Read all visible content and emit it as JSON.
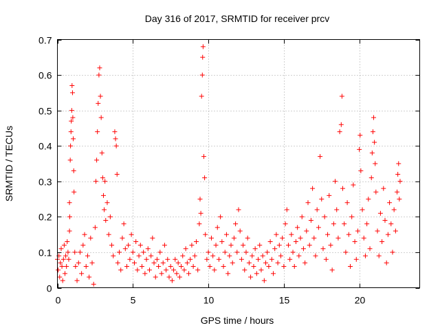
{
  "chart_data": {
    "type": "scatter",
    "title": "Day 316 of 2017, SRMTID for receiver prcv",
    "xlabel": "GPS time / hours",
    "ylabel": "SRMTID / TECUs",
    "xlim": [
      0,
      24
    ],
    "ylim": [
      0,
      0.7
    ],
    "xticks": [
      0,
      5,
      10,
      15,
      20
    ],
    "xtick_labels": [
      "0",
      "5",
      "10",
      "15",
      "20"
    ],
    "yticks": [
      0,
      0.1,
      0.2,
      0.3,
      0.4,
      0.5,
      0.6,
      0.7
    ],
    "ytick_labels": [
      "0",
      "0.1",
      "0.2",
      "0.3",
      "0.4",
      "0.5",
      "0.6",
      "0.7"
    ],
    "grid": true,
    "marker": "plus",
    "series": [
      {
        "name": "SRMTID",
        "color": "#ff0000",
        "points": [
          [
            0.0,
            0.08
          ],
          [
            0.05,
            0.05
          ],
          [
            0.1,
            0.09
          ],
          [
            0.15,
            0.03
          ],
          [
            0.2,
            0.07
          ],
          [
            0.25,
            0.11
          ],
          [
            0.3,
            0.06
          ],
          [
            0.35,
            0.02
          ],
          [
            0.4,
            0.08
          ],
          [
            0.45,
            0.12
          ],
          [
            0.5,
            0.04
          ],
          [
            0.55,
            0.09
          ],
          [
            0.6,
            0.06
          ],
          [
            0.65,
            0.13
          ],
          [
            0.7,
            0.1
          ],
          [
            0.75,
            0.08
          ],
          [
            0.8,
            0.16
          ],
          [
            0.8,
            0.24
          ],
          [
            0.82,
            0.2
          ],
          [
            0.85,
            0.36
          ],
          [
            0.87,
            0.4
          ],
          [
            0.9,
            0.44
          ],
          [
            0.92,
            0.47
          ],
          [
            0.95,
            0.5
          ],
          [
            0.97,
            0.57
          ],
          [
            1.0,
            0.55
          ],
          [
            1.02,
            0.48
          ],
          [
            1.05,
            0.42
          ],
          [
            1.08,
            0.33
          ],
          [
            1.1,
            0.27
          ],
          [
            1.15,
            0.1
          ],
          [
            1.2,
            0.06
          ],
          [
            1.3,
            0.02
          ],
          [
            1.4,
            0.07
          ],
          [
            1.5,
            0.1
          ],
          [
            1.6,
            0.04
          ],
          [
            1.7,
            0.12
          ],
          [
            1.8,
            0.15
          ],
          [
            1.9,
            0.06
          ],
          [
            2.0,
            0.09
          ],
          [
            2.1,
            0.03
          ],
          [
            2.2,
            0.14
          ],
          [
            2.3,
            0.07
          ],
          [
            2.4,
            0.01
          ],
          [
            2.5,
            0.17
          ],
          [
            2.55,
            0.3
          ],
          [
            2.6,
            0.36
          ],
          [
            2.65,
            0.44
          ],
          [
            2.7,
            0.52
          ],
          [
            2.75,
            0.6
          ],
          [
            2.8,
            0.62
          ],
          [
            2.85,
            0.54
          ],
          [
            2.9,
            0.48
          ],
          [
            2.95,
            0.38
          ],
          [
            3.0,
            0.31
          ],
          [
            3.05,
            0.26
          ],
          [
            3.1,
            0.22
          ],
          [
            3.15,
            0.3
          ],
          [
            3.2,
            0.19
          ],
          [
            3.3,
            0.24
          ],
          [
            3.4,
            0.15
          ],
          [
            3.5,
            0.2
          ],
          [
            3.6,
            0.12
          ],
          [
            3.7,
            0.09
          ],
          [
            3.8,
            0.44
          ],
          [
            3.85,
            0.42
          ],
          [
            3.9,
            0.4
          ],
          [
            3.95,
            0.32
          ],
          [
            4.0,
            0.07
          ],
          [
            4.1,
            0.1
          ],
          [
            4.2,
            0.05
          ],
          [
            4.3,
            0.14
          ],
          [
            4.4,
            0.18
          ],
          [
            4.5,
            0.11
          ],
          [
            4.6,
            0.06
          ],
          [
            4.7,
            0.12
          ],
          [
            4.8,
            0.08
          ],
          [
            4.9,
            0.15
          ],
          [
            5.0,
            0.1
          ],
          [
            5.1,
            0.07
          ],
          [
            5.2,
            0.13
          ],
          [
            5.3,
            0.05
          ],
          [
            5.4,
            0.09
          ],
          [
            5.5,
            0.12
          ],
          [
            5.6,
            0.06
          ],
          [
            5.7,
            0.1
          ],
          [
            5.8,
            0.04
          ],
          [
            5.9,
            0.08
          ],
          [
            6.0,
            0.11
          ],
          [
            6.1,
            0.05
          ],
          [
            6.2,
            0.09
          ],
          [
            6.3,
            0.14
          ],
          [
            6.4,
            0.07
          ],
          [
            6.5,
            0.03
          ],
          [
            6.6,
            0.08
          ],
          [
            6.7,
            0.06
          ],
          [
            6.8,
            0.1
          ],
          [
            6.9,
            0.04
          ],
          [
            7.0,
            0.07
          ],
          [
            7.1,
            0.12
          ],
          [
            7.2,
            0.05
          ],
          [
            7.3,
            0.08
          ],
          [
            7.4,
            0.03
          ],
          [
            7.5,
            0.06
          ],
          [
            7.6,
            0.02
          ],
          [
            7.7,
            0.05
          ],
          [
            7.8,
            0.08
          ],
          [
            7.9,
            0.04
          ],
          [
            8.0,
            0.07
          ],
          [
            8.1,
            0.03
          ],
          [
            8.2,
            0.06
          ],
          [
            8.3,
            0.09
          ],
          [
            8.4,
            0.05
          ],
          [
            8.5,
            0.11
          ],
          [
            8.6,
            0.07
          ],
          [
            8.7,
            0.04
          ],
          [
            8.8,
            0.08
          ],
          [
            8.9,
            0.12
          ],
          [
            9.0,
            0.06
          ],
          [
            9.1,
            0.09
          ],
          [
            9.2,
            0.13
          ],
          [
            9.3,
            0.05
          ],
          [
            9.4,
            0.18
          ],
          [
            9.45,
            0.25
          ],
          [
            9.5,
            0.21
          ],
          [
            9.55,
            0.54
          ],
          [
            9.6,
            0.6
          ],
          [
            9.62,
            0.65
          ],
          [
            9.65,
            0.68
          ],
          [
            9.7,
            0.37
          ],
          [
            9.75,
            0.31
          ],
          [
            9.8,
            0.15
          ],
          [
            9.9,
            0.08
          ],
          [
            10.0,
            0.1
          ],
          [
            10.1,
            0.06
          ],
          [
            10.2,
            0.14
          ],
          [
            10.3,
            0.09
          ],
          [
            10.4,
            0.05
          ],
          [
            10.5,
            0.12
          ],
          [
            10.6,
            0.17
          ],
          [
            10.7,
            0.08
          ],
          [
            10.8,
            0.2
          ],
          [
            10.9,
            0.13
          ],
          [
            11.0,
            0.06
          ],
          [
            11.1,
            0.1
          ],
          [
            11.2,
            0.15
          ],
          [
            11.3,
            0.04
          ],
          [
            11.4,
            0.09
          ],
          [
            11.5,
            0.12
          ],
          [
            11.6,
            0.07
          ],
          [
            11.7,
            0.14
          ],
          [
            11.8,
            0.18
          ],
          [
            11.9,
            0.1
          ],
          [
            12.0,
            0.22
          ],
          [
            12.1,
            0.16
          ],
          [
            12.2,
            0.08
          ],
          [
            12.3,
            0.12
          ],
          [
            12.4,
            0.05
          ],
          [
            12.5,
            0.1
          ],
          [
            12.6,
            0.14
          ],
          [
            12.7,
            0.07
          ],
          [
            12.8,
            0.03
          ],
          [
            12.9,
            0.09
          ],
          [
            13.0,
            0.06
          ],
          [
            13.1,
            0.11
          ],
          [
            13.2,
            0.04
          ],
          [
            13.3,
            0.08
          ],
          [
            13.4,
            0.12
          ],
          [
            13.5,
            0.05
          ],
          [
            13.6,
            0.09
          ],
          [
            13.7,
            0.02
          ],
          [
            13.8,
            0.07
          ],
          [
            13.9,
            0.1
          ],
          [
            14.0,
            0.06
          ],
          [
            14.1,
            0.13
          ],
          [
            14.2,
            0.08
          ],
          [
            14.3,
            0.04
          ],
          [
            14.4,
            0.11
          ],
          [
            14.5,
            0.15
          ],
          [
            14.6,
            0.07
          ],
          [
            14.7,
            0.12
          ],
          [
            14.8,
            0.09
          ],
          [
            14.9,
            0.14
          ],
          [
            15.0,
            0.06
          ],
          [
            15.1,
            0.18
          ],
          [
            15.2,
            0.22
          ],
          [
            15.3,
            0.12
          ],
          [
            15.4,
            0.08
          ],
          [
            15.5,
            0.15
          ],
          [
            15.6,
            0.1
          ],
          [
            15.7,
            0.06
          ],
          [
            15.8,
            0.13
          ],
          [
            15.9,
            0.17
          ],
          [
            16.0,
            0.09
          ],
          [
            16.1,
            0.14
          ],
          [
            16.2,
            0.2
          ],
          [
            16.3,
            0.11
          ],
          [
            16.4,
            0.07
          ],
          [
            16.5,
            0.16
          ],
          [
            16.6,
            0.24
          ],
          [
            16.7,
            0.12
          ],
          [
            16.8,
            0.19
          ],
          [
            16.9,
            0.28
          ],
          [
            17.0,
            0.14
          ],
          [
            17.1,
            0.09
          ],
          [
            17.2,
            0.22
          ],
          [
            17.3,
            0.17
          ],
          [
            17.4,
            0.37
          ],
          [
            17.5,
            0.25
          ],
          [
            17.6,
            0.11
          ],
          [
            17.7,
            0.2
          ],
          [
            17.8,
            0.08
          ],
          [
            17.9,
            0.15
          ],
          [
            18.0,
            0.26
          ],
          [
            18.1,
            0.12
          ],
          [
            18.2,
            0.05
          ],
          [
            18.3,
            0.18
          ],
          [
            18.4,
            0.3
          ],
          [
            18.5,
            0.22
          ],
          [
            18.6,
            0.14
          ],
          [
            18.7,
            0.44
          ],
          [
            18.8,
            0.46
          ],
          [
            18.85,
            0.54
          ],
          [
            18.9,
            0.28
          ],
          [
            19.0,
            0.18
          ],
          [
            19.1,
            0.1
          ],
          [
            19.2,
            0.24
          ],
          [
            19.3,
            0.15
          ],
          [
            19.4,
            0.06
          ],
          [
            19.5,
            0.2
          ],
          [
            19.6,
            0.29
          ],
          [
            19.7,
            0.13
          ],
          [
            19.8,
            0.08
          ],
          [
            19.9,
            0.16
          ],
          [
            20.0,
            0.39
          ],
          [
            20.05,
            0.43
          ],
          [
            20.1,
            0.33
          ],
          [
            20.2,
            0.22
          ],
          [
            20.3,
            0.14
          ],
          [
            20.4,
            0.09
          ],
          [
            20.5,
            0.18
          ],
          [
            20.6,
            0.25
          ],
          [
            20.7,
            0.11
          ],
          [
            20.8,
            0.31
          ],
          [
            20.85,
            0.38
          ],
          [
            20.9,
            0.44
          ],
          [
            20.95,
            0.48
          ],
          [
            21.0,
            0.41
          ],
          [
            21.05,
            0.35
          ],
          [
            21.1,
            0.27
          ],
          [
            21.2,
            0.16
          ],
          [
            21.3,
            0.09
          ],
          [
            21.4,
            0.21
          ],
          [
            21.5,
            0.13
          ],
          [
            21.6,
            0.28
          ],
          [
            21.7,
            0.19
          ],
          [
            21.8,
            0.07
          ],
          [
            21.9,
            0.15
          ],
          [
            22.0,
            0.24
          ],
          [
            22.1,
            0.18
          ],
          [
            22.2,
            0.1
          ],
          [
            22.3,
            0.22
          ],
          [
            22.4,
            0.16
          ],
          [
            22.5,
            0.27
          ],
          [
            22.55,
            0.32
          ],
          [
            22.6,
            0.35
          ],
          [
            22.65,
            0.25
          ],
          [
            22.7,
            0.3
          ]
        ]
      }
    ]
  }
}
